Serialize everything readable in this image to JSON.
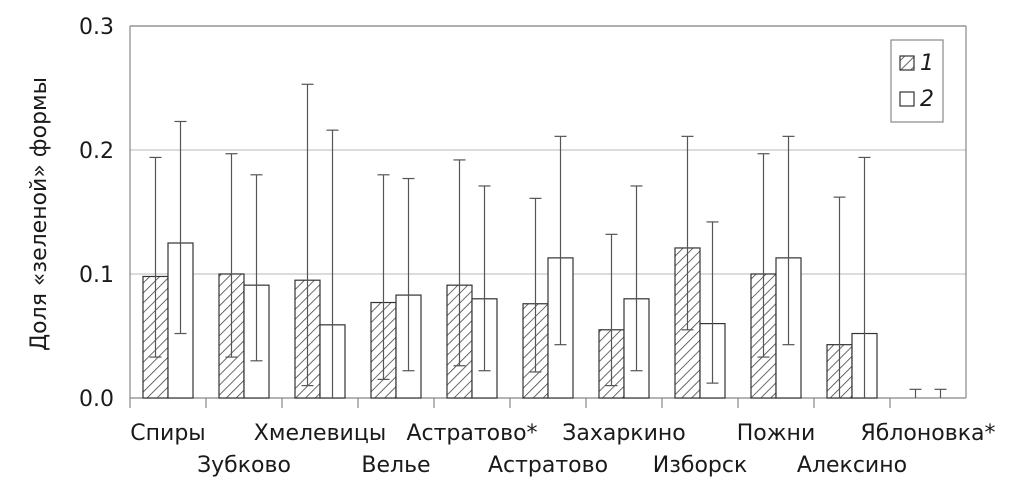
{
  "chart_data": {
    "type": "bar",
    "title": "",
    "xlabel": "",
    "ylabel": "Доля «зеленой» формы",
    "ylim": [
      0,
      0.3
    ],
    "yticks": [
      "0.0",
      "0.1",
      "0.2",
      "0.3"
    ],
    "grid": true,
    "legend_position": "top-right",
    "categories": [
      "Спиры",
      "Зубково",
      "Хмелевицы",
      "Велье",
      "Астратово*",
      "Астратово",
      "Захаркино",
      "Изборск",
      "Пожни",
      "Алексино",
      "Яблоновка*"
    ],
    "series": [
      {
        "name": "1",
        "pattern": "hatched",
        "values": [
          0.098,
          0.1,
          0.095,
          0.077,
          0.091,
          0.076,
          0.055,
          0.121,
          0.1,
          0.043,
          0.0
        ],
        "error_low": [
          0.033,
          0.033,
          0.01,
          0.015,
          0.026,
          0.021,
          0.01,
          0.055,
          0.033,
          0.0,
          0.0
        ],
        "error_high": [
          0.194,
          0.197,
          0.253,
          0.18,
          0.192,
          0.161,
          0.132,
          0.211,
          0.197,
          0.162,
          0.007
        ]
      },
      {
        "name": "2",
        "pattern": "plain",
        "values": [
          0.125,
          0.091,
          0.059,
          0.083,
          0.08,
          0.113,
          0.08,
          0.06,
          0.113,
          0.052,
          0.0
        ],
        "error_low": [
          0.052,
          0.03,
          0.0,
          0.022,
          0.022,
          0.043,
          0.022,
          0.012,
          0.043,
          0.0,
          0.0
        ],
        "error_high": [
          0.223,
          0.18,
          0.216,
          0.177,
          0.171,
          0.211,
          0.171,
          0.142,
          0.211,
          0.194,
          0.007
        ]
      }
    ]
  },
  "colors": {
    "bar_stroke": "#333333",
    "hatch": "#444444",
    "bar_fill": "#ffffff",
    "grid": "#c8c8c8",
    "axis": "#888888",
    "error_bar": "#555555",
    "text": "#1a1a1a"
  }
}
